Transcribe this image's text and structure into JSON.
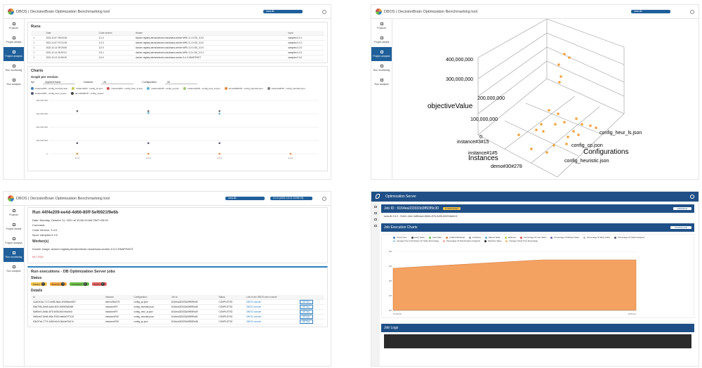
{
  "app": {
    "title": "DBOS | DecisionBrain Optimization Benchmarking tool",
    "version_select": "sara-lib",
    "version_select2": "3.4.0 (2021-10-11 10:56:19)"
  },
  "sidebar": [
    {
      "label": "Projects"
    },
    {
      "label": "Project details"
    },
    {
      "label": "Project analysis"
    },
    {
      "label": "Run monitoring"
    },
    {
      "label": "Run analysis"
    }
  ],
  "runs": {
    "title": "Runs",
    "headers": [
      "Date",
      "Code version",
      "Worker",
      "Input"
    ],
    "rows": [
      [
        "2021-10-07 09:00:26",
        "3.1.0",
        "docker-registry.decisionbrain.cloud/sara-worker:WRL 3.1.0-OS_3.3.0",
        "samples:3.1.0"
      ],
      [
        "2021-10-07 07:31:03",
        "3.1.0",
        "docker-registry.decisionbrain.cloud/sara-worker:WRL 3.1.0-OS_3.3.0",
        "samples:3.1.0"
      ],
      [
        "2021-10-11 09:25:45",
        "3.2.0",
        "docker-registry.decisionbrain.cloud/sara-worker:WRL 3.2.0-OS_3.3.0",
        "samples:3.2.0"
      ],
      [
        "2021-10-11 09:52:21",
        "3.3.1",
        "docker-registry.decisionbrain.cloud/sara-worker:WRL 3.3.1-OS_3.3.1",
        "samples:3.3.1"
      ],
      [
        "2021-10-11 10:56:19",
        "3.4.0",
        "docker-registry.decisionbrain.cloud/sara-worker:3.4.0-SNAPSHOT",
        "samples:3.4.0"
      ]
    ]
  },
  "charts": {
    "title": "Charts",
    "subtitle": "Graph per version",
    "kpi_label": "Kpi",
    "kpi_value": "objectiveValue",
    "instance_label": "Instance",
    "instance_value": "All",
    "config_label": "Configuration",
    "config_value": "All",
    "legend": [
      {
        "name": "instance#F9 - config_heuristic.json",
        "color": "#3a7fc1"
      },
      {
        "name": "instance#F9 - config_cp.json",
        "color": "#c6c94a"
      },
      {
        "name": "instance#F9 - config_heur_ls.json",
        "color": "#d04c4c"
      },
      {
        "name": "instance#F45 - config_cp.json",
        "color": "#5fb0d4"
      },
      {
        "name": "instance#F45 - config_heur_ls.json",
        "color": "#9dc96c"
      },
      {
        "name": "demo#30#278 - config_heuristic.json",
        "color": "#e38a3b"
      },
      {
        "name": "instance#F45 - config_heuristic.json",
        "color": "#7f7f7f"
      },
      {
        "name": "instance#F9 - config_heur_ls.json",
        "color": "#555577"
      },
      {
        "name": "demo#30#278 - config_cp.json",
        "color": "#444444"
      }
    ]
  },
  "chart_data": {
    "type": "scatter",
    "categories": [
      "3.1.0",
      "3.2.0",
      "3.3.1",
      "3.4.0"
    ],
    "ylim": [
      0,
      400000000
    ],
    "yticks": [
      "400,000,000",
      "300,000,000",
      "200,000,000",
      "100,000,000",
      "0"
    ],
    "series": [
      {
        "name": "instance#F9 - config_heuristic.json",
        "values": [
          320000000,
          320000000,
          320000000,
          null
        ]
      },
      {
        "name": "instance#F45 - config_cp.json",
        "values": [
          null,
          305000000,
          300000000,
          null
        ]
      },
      {
        "name": "demo#30#278 - config_heuristic.json",
        "values": [
          80000000,
          80000000,
          80000000,
          null
        ]
      },
      {
        "name": "instance#F9 - config_cp.json",
        "values": [
          0,
          0,
          0,
          0
        ]
      }
    ]
  },
  "plot3d": {
    "zlabel": "objectiveValue",
    "xlabel": "Instances",
    "ylabel": "Configurations",
    "zticks": [
      "400,000,000",
      "300,000,000",
      "200,000,000",
      "100,000,000",
      "0"
    ],
    "xticks": [
      "instance#3#15",
      "instance#1#5",
      "demo#30#278"
    ],
    "yticks": [
      "config_heur_ls.json",
      "config_cp.json",
      "config_heuristic.json"
    ]
  },
  "run": {
    "title": "Run 44f4e209-ee4d-4d66-80ff-5ef6921f9e6b",
    "date": "Date: Monday, October 11, 2021 at 10:56:19 AM GMT+05:00",
    "comment": "Comment:",
    "code_version": "Code Version: 3.4.0",
    "input": "Input: samples:3.4.0",
    "worker_title": "Worker(s)",
    "worker": "Docker image: docker-registry.decisionbrain.cloud/sara-worker:3.4.0-SNAPSHOT",
    "kill": "KILL RUN",
    "exec_title": "Run executions - DB Optimization Server jobs",
    "status_title": "Status",
    "statuses": [
      {
        "label": "Waiting",
        "count": "0",
        "color": "#f0c24a"
      },
      {
        "label": "Running",
        "count": "0",
        "color": "#f0a23a"
      },
      {
        "label": "Completed",
        "count": "9",
        "color": "#6cbf4a"
      },
      {
        "label": "Failed",
        "count": "0",
        "color": "#e06060"
      }
    ],
    "details_title": "Details",
    "headers": [
      "Id",
      "Instance",
      "Configuration",
      "Job id",
      "Status",
      "Link to the DBOS web console",
      ""
    ],
    "rows": [
      [
        "11ac0e2ac-7172-4e85-9a6c-4f1606ea4007",
        "demo#30#278",
        "config_cp.json",
        "6164ea333333d3ff93f9c30",
        "COMPLETED",
        "DBOS console",
        "DETAIL"
      ],
      [
        "80af7981-8ee8-4a6b-9f20-8009f2fc8468",
        "instance#F9",
        "config_heuristic.json",
        "6164ea333333d3ff93f9c48",
        "COMPLETED",
        "DBOS console",
        "DETAIL"
      ],
      [
        "5c8f0ee1-8b6d-4f76-9c55-60d7e6a0e1f",
        "instance#F9",
        "config_heur_ls.json",
        "6164ea333333d3ff93f9c49",
        "COMPLETED",
        "DBOS console",
        "DETAIL"
      ],
      [
        "0b0fead7-8b66-4f8e-9765-eab6d27f7102",
        "instance#F45",
        "config_heuristic.json",
        "6164ea333333d3ff93f9c50",
        "COMPLETED",
        "DBOS console",
        "DETAIL"
      ],
      [
        "62b0f7ed-7774-4485-b0c9-06d4ef7fd17e",
        "instance#F45",
        "config_cp.json",
        "6164ea333333d3ff93f9c38",
        "COMPLETED",
        "DBOS console",
        "DETAIL"
      ]
    ]
  },
  "os": {
    "title": "Optimization Server",
    "job_id": "Job ID : 6164ea333333d3ff93f9c30",
    "job_status": "COMPLETED",
    "job_line": "sara-lib 3.4.0 - Event Jobs 3c89eaa1-8b6d-4f76-9c55-60d7e6a0e1f",
    "refresh": "REFRESH",
    "charts_title": "Job Execution Charts",
    "download": "DOWNLOAD",
    "legend": [
      {
        "name": "Travel Time",
        "color": "#3a7fc1"
      },
      {
        "name": "Early Tasks",
        "color": "#444444"
      },
      {
        "name": "Late Tasks",
        "color": "#6cbf4a"
      },
      {
        "name": "Unfilled Workload",
        "color": "#e38a3b"
      },
      {
        "name": "Tardiness",
        "color": "#9a9a9a"
      },
      {
        "name": "Missed Tasks",
        "color": "#5fb0d4"
      },
      {
        "name": "Earliness",
        "color": "#c6c94a"
      },
      {
        "name": "Percentage Of Late Tasks",
        "color": "#d04c4c"
      },
      {
        "name": "Percentage Of Missed Tasks",
        "color": "#7b5fb0"
      },
      {
        "name": "Percentage Of Early Tasks",
        "color": "#bbbbbb"
      },
      {
        "name": "Percentage Of Tasks Assigned",
        "color": "#555577"
      },
      {
        "name": "Average Time Technicians On Tasks Percentage",
        "color": "#a6cee3"
      },
      {
        "name": "Percentage Of Task Duration Assigned",
        "color": "#f4a3a3"
      },
      {
        "name": "Objective Value",
        "color": "#222222"
      },
      {
        "name": "Average Travel Time Percentage",
        "color": "#f2c27a"
      }
    ],
    "yticks": [
      "4M",
      "3M",
      "2M",
      "1M",
      "0M"
    ],
    "xstart": "10:56:20",
    "xend": "10:56:21",
    "logs_title": "Job Logs"
  }
}
